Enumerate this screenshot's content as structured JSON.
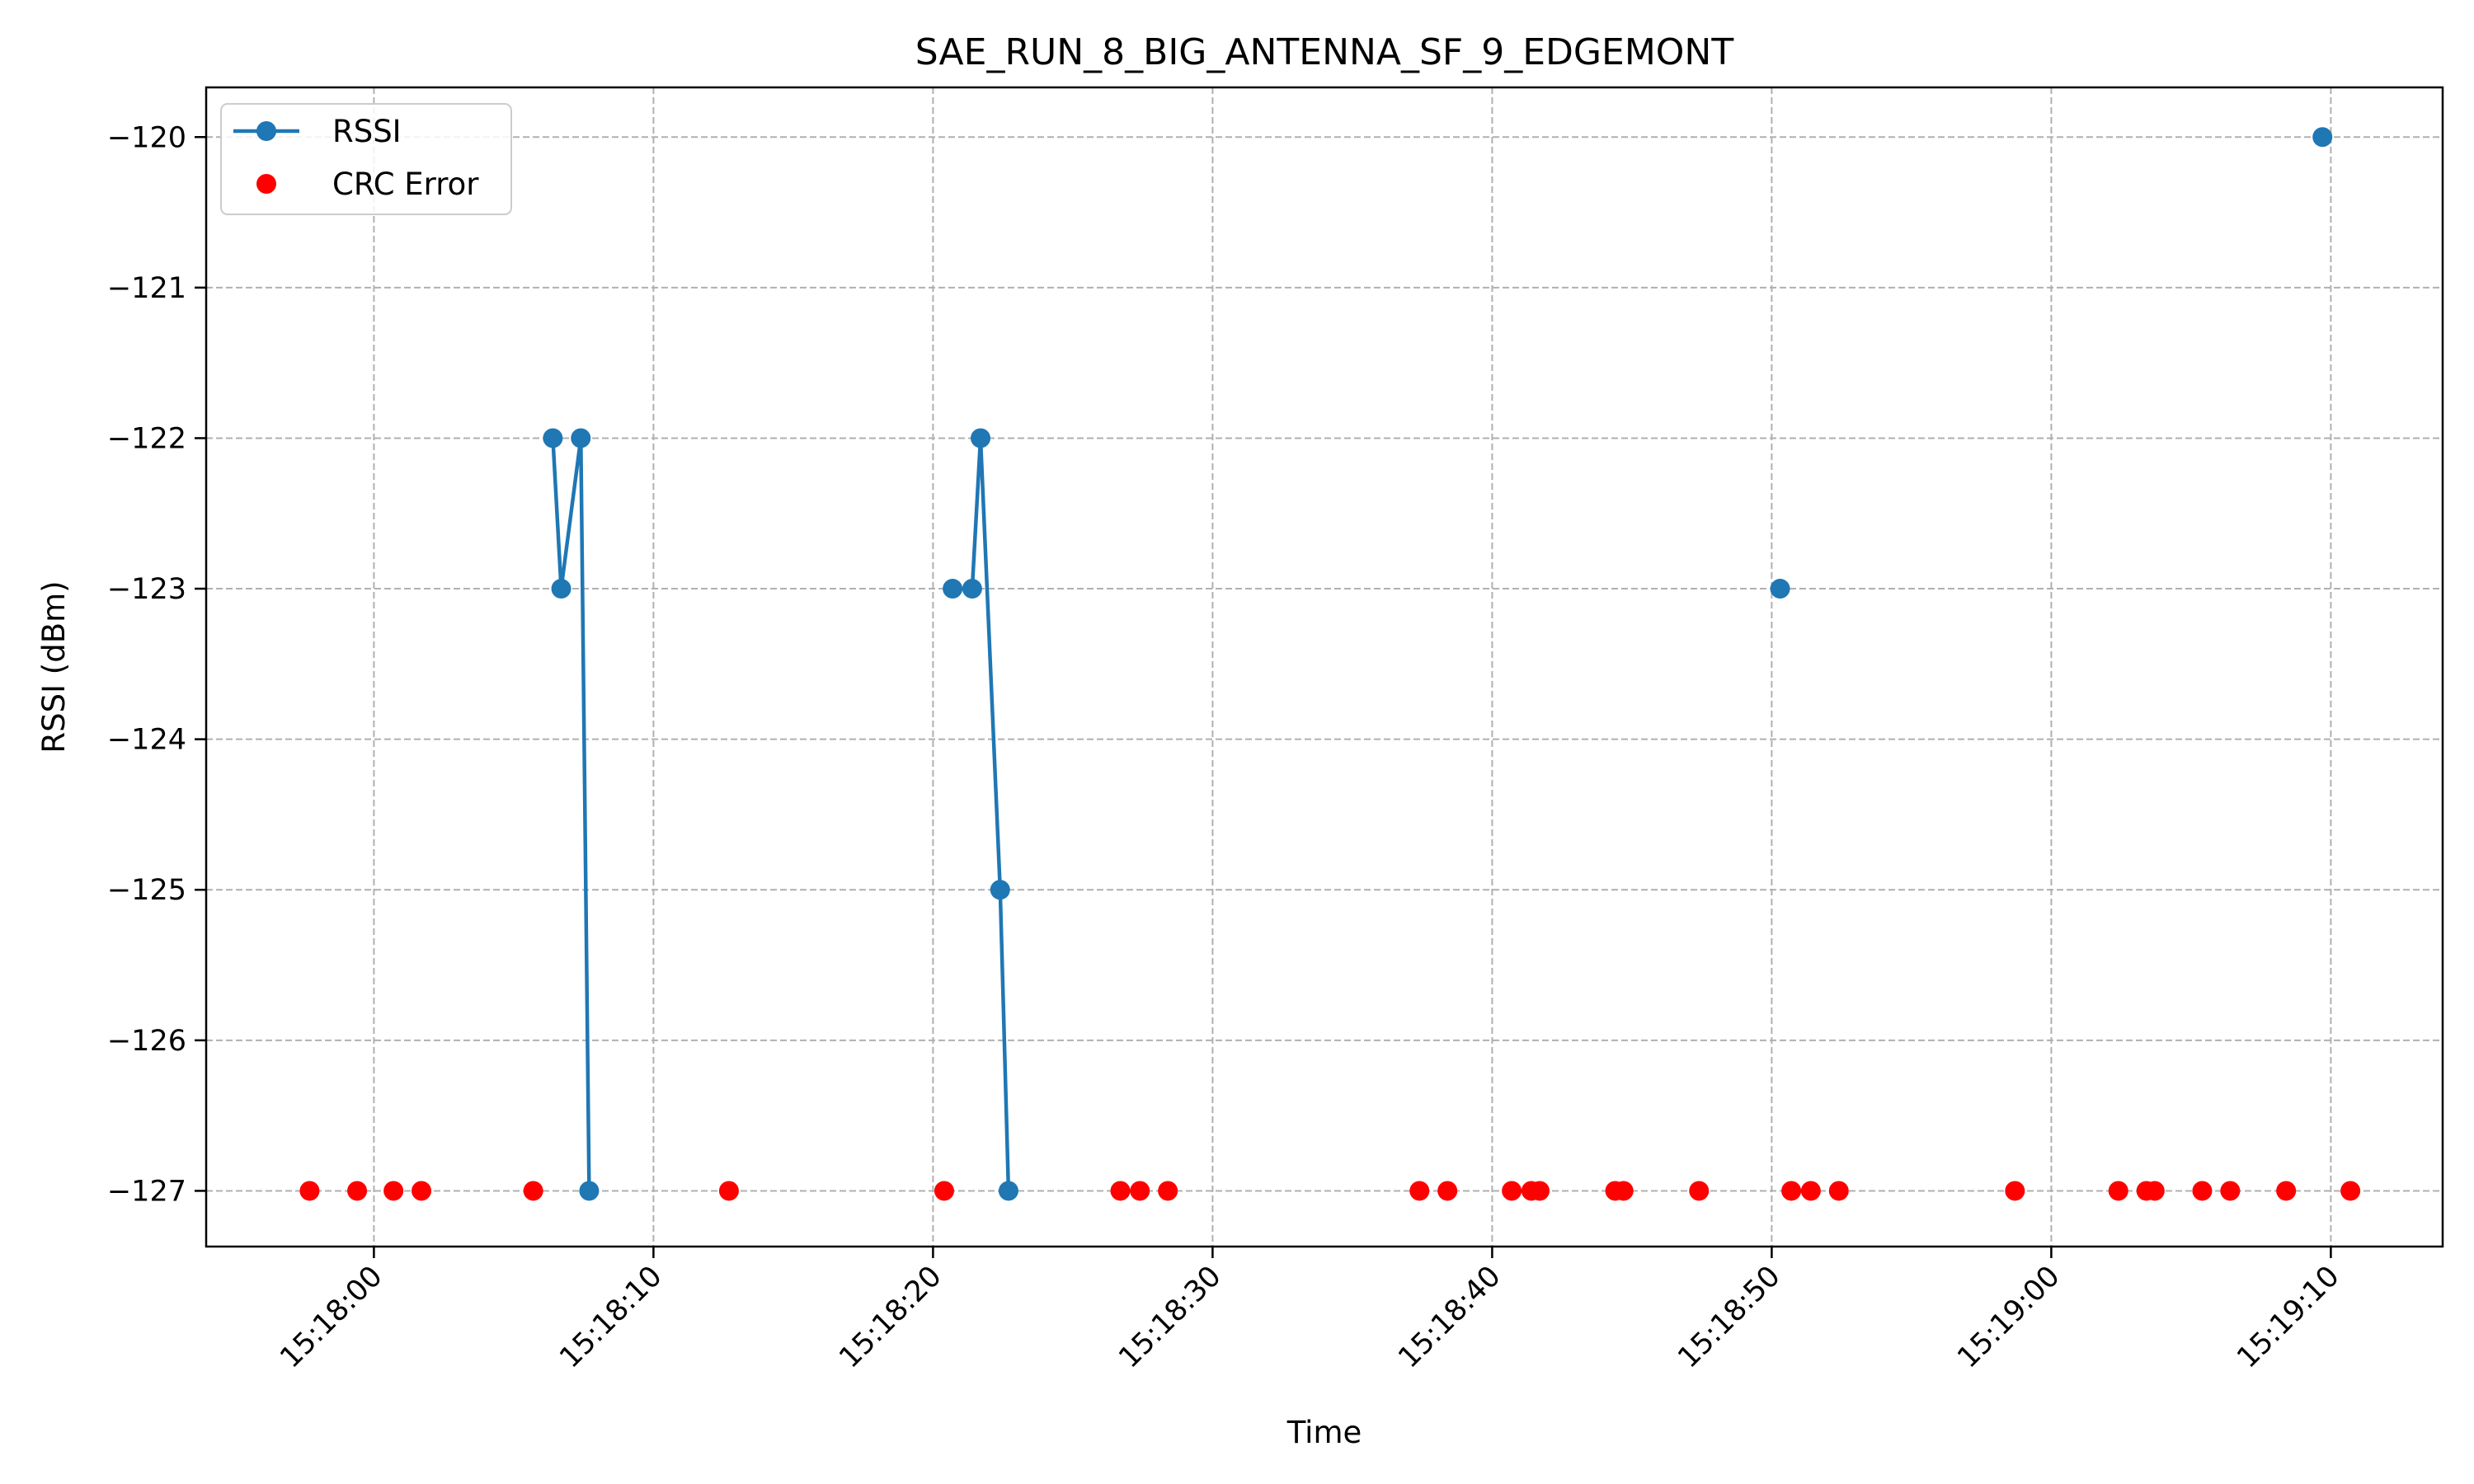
{
  "chart_data": {
    "type": "line",
    "title": "SAE_RUN_8_BIG_ANTENNA_SF_9_EDGEMONT",
    "xlabel": "Time",
    "ylabel": "RSSI (dBm)",
    "x_axis": {
      "type": "time",
      "range": [
        "15:17:54",
        "15:19:14"
      ],
      "ticks": [
        "15:18:00",
        "15:18:10",
        "15:18:20",
        "15:18:30",
        "15:18:40",
        "15:18:50",
        "15:19:00",
        "15:19:10"
      ]
    },
    "y_axis": {
      "range": [
        -127.37,
        -119.67
      ],
      "ticks": [
        -120,
        -121,
        -122,
        -123,
        -124,
        -125,
        -126,
        -127
      ],
      "tick_labels": [
        "−120",
        "−121",
        "−122",
        "−123",
        "−124",
        "−125",
        "−126",
        "−127"
      ]
    },
    "grid": true,
    "legend": {
      "placement": "top-left",
      "entries": [
        "RSSI",
        "CRC Error"
      ]
    },
    "series": [
      {
        "name": "RSSI",
        "kind": "line-marker",
        "color": "#1f77b4",
        "points": [
          {
            "x": "15:18:06.4",
            "y": -122
          },
          {
            "x": "15:18:06.7",
            "y": -123
          },
          {
            "x": "15:18:07.4",
            "y": -122
          },
          {
            "x": "15:18:07.7",
            "y": -127
          },
          {
            "x": "15:18:20.7",
            "y": -123
          },
          {
            "x": "15:18:21.4",
            "y": -123
          },
          {
            "x": "15:18:21.7",
            "y": -122
          },
          {
            "x": "15:18:22.4",
            "y": -125
          },
          {
            "x": "15:18:22.7",
            "y": -127
          },
          {
            "x": "15:18:50.3",
            "y": -123
          },
          {
            "x": "15:19:09.7",
            "y": -120
          }
        ]
      },
      {
        "name": "CRC Error",
        "kind": "scatter",
        "color": "#ff0000",
        "points": [
          {
            "x": "15:17:57.7",
            "y": -127
          },
          {
            "x": "15:17:59.4",
            "y": -127
          },
          {
            "x": "15:18:00.7",
            "y": -127
          },
          {
            "x": "15:18:01.7",
            "y": -127
          },
          {
            "x": "15:18:05.7",
            "y": -127
          },
          {
            "x": "15:18:12.7",
            "y": -127
          },
          {
            "x": "15:18:20.4",
            "y": -127
          },
          {
            "x": "15:18:26.7",
            "y": -127
          },
          {
            "x": "15:18:27.4",
            "y": -127
          },
          {
            "x": "15:18:28.4",
            "y": -127
          },
          {
            "x": "15:18:37.4",
            "y": -127
          },
          {
            "x": "15:18:38.4",
            "y": -127
          },
          {
            "x": "15:18:40.7",
            "y": -127
          },
          {
            "x": "15:18:41.4",
            "y": -127
          },
          {
            "x": "15:18:41.7",
            "y": -127
          },
          {
            "x": "15:18:44.4",
            "y": -127
          },
          {
            "x": "15:18:44.7",
            "y": -127
          },
          {
            "x": "15:18:47.4",
            "y": -127
          },
          {
            "x": "15:18:50.7",
            "y": -127
          },
          {
            "x": "15:18:51.4",
            "y": -127
          },
          {
            "x": "15:18:52.4",
            "y": -127
          },
          {
            "x": "15:18:58.7",
            "y": -127
          },
          {
            "x": "15:19:02.4",
            "y": -127
          },
          {
            "x": "15:19:03.4",
            "y": -127
          },
          {
            "x": "15:19:03.7",
            "y": -127
          },
          {
            "x": "15:19:05.4",
            "y": -127
          },
          {
            "x": "15:19:06.4",
            "y": -127
          },
          {
            "x": "15:19:08.4",
            "y": -127
          },
          {
            "x": "15:19:10.7",
            "y": -127
          }
        ]
      }
    ]
  }
}
